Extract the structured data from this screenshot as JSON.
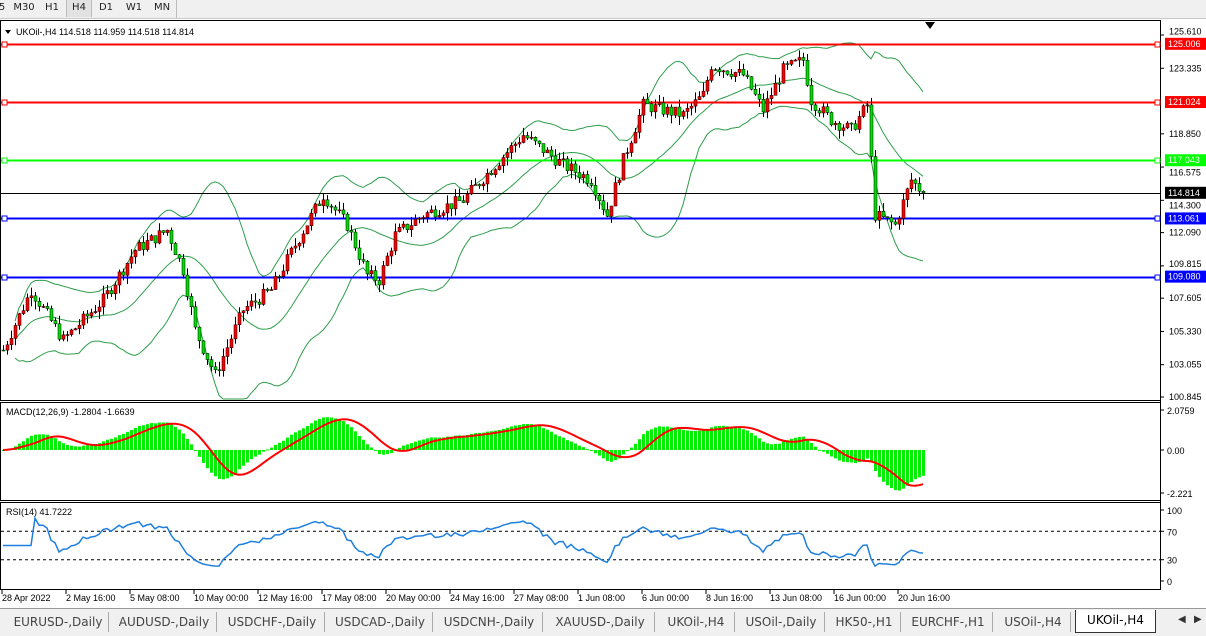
{
  "toolbar": {
    "timeframes": [
      "5",
      "M30",
      "H1",
      "H4",
      "D1",
      "W1",
      "MN"
    ],
    "active": "H4"
  },
  "chart": {
    "header": "UKOil-,H4  114.518 114.959 114.518 114.814",
    "symbol": "UKOil-,H4",
    "ohlc": {
      "open": "114.518",
      "high": "114.959",
      "low": "114.518",
      "close": "114.814"
    },
    "price_ticks": [
      "125.610",
      "123.335",
      "118.850",
      "116.575",
      "114.300",
      "112.090",
      "109.815",
      "107.605",
      "105.330",
      "103.055",
      "100.845"
    ],
    "levels": [
      {
        "price": "125.006",
        "color": "#ff0000"
      },
      {
        "price": "121.024",
        "color": "#ff0000"
      },
      {
        "price": "117.043",
        "color": "#00ff00"
      },
      {
        "price": "113.061",
        "color": "#0000ff"
      },
      {
        "price": "109.080",
        "color": "#0000ff"
      }
    ],
    "current_price": {
      "price": "114.814",
      "color": "#000000"
    },
    "candle_colors": {
      "bull": "#ff0000",
      "bear": "#00dd00",
      "bands": "#2e9e4a"
    },
    "close_path": [
      [
        0,
        104.06
      ],
      [
        7,
        108.17
      ],
      [
        15,
        104.75
      ],
      [
        25,
        107.48
      ],
      [
        33,
        110.9
      ],
      [
        41,
        112.27
      ],
      [
        45,
        109.54
      ],
      [
        48,
        105.43
      ],
      [
        53,
        102.35
      ],
      [
        60,
        106.8
      ],
      [
        67,
        108.17
      ],
      [
        73,
        111.25
      ],
      [
        80,
        114.67
      ],
      [
        86,
        112.61
      ],
      [
        91,
        109.19
      ],
      [
        94,
        108.85
      ],
      [
        98,
        111.93
      ],
      [
        105,
        113.3
      ],
      [
        115,
        114.32
      ],
      [
        123,
        116.72
      ],
      [
        130,
        118.77
      ],
      [
        140,
        116.72
      ],
      [
        147,
        115.69
      ],
      [
        151,
        113.3
      ],
      [
        155,
        117.06
      ],
      [
        160,
        120.82
      ],
      [
        170,
        120.14
      ],
      [
        175,
        121.51
      ],
      [
        177,
        123.56
      ],
      [
        185,
        122.87
      ],
      [
        190,
        120.48
      ],
      [
        195,
        123.22
      ],
      [
        200,
        123.9
      ],
      [
        202,
        121.16
      ],
      [
        207,
        119.8
      ],
      [
        212,
        119.11
      ],
      [
        216,
        120.82
      ],
      [
        218,
        113.3
      ],
      [
        223,
        112.61
      ],
      [
        227,
        115.69
      ],
      [
        230,
        114.814
      ]
    ]
  },
  "macd": {
    "label": "MACD(12,26,9) -1.2804 -1.6639",
    "ticks": [
      "2.0759",
      "0.00",
      "-2.221"
    ],
    "hist_color": "#00ee00",
    "signal_color": "#ff0000"
  },
  "rsi": {
    "label": "RSI(14) 41.7222",
    "ticks": [
      "100",
      "70",
      "30",
      "0"
    ],
    "line_color": "#1e7fe0"
  },
  "time_axis": [
    "28 Apr 2022",
    "2 May 16:00",
    "5 May 08:00",
    "10 May 00:00",
    "12 May 16:00",
    "17 May 08:00",
    "20 May 00:00",
    "24 May 16:00",
    "27 May 08:00",
    "1 Jun 08:00",
    "6 Jun 00:00",
    "8 Jun 16:00",
    "13 Jun 08:00",
    "16 Jun 00:00",
    "20 Jun 16:00"
  ],
  "tabs": [
    "EURUSD-,Daily",
    "AUDUSD-,Daily",
    "USDCHF-,Daily",
    "USDCAD-,Daily",
    "USDCNH-,Daily",
    "XAUUSD-,Daily",
    "UKOil-,H4",
    "USOil-,Daily",
    "HK50-,H1",
    "EURCHF-,H1",
    "USOil-,H4",
    "UKOil-,H4"
  ],
  "active_tab": 11
}
